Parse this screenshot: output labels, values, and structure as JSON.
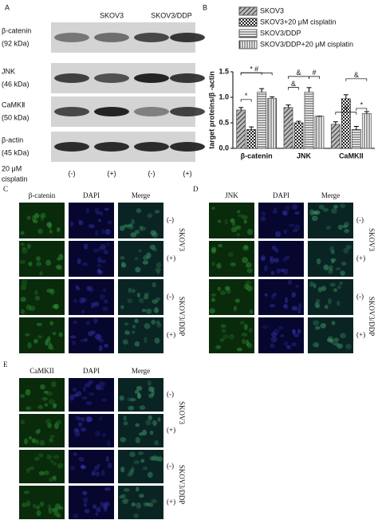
{
  "panel_a": {
    "letter": "A",
    "groups": [
      "SKOV3",
      "SKOV3/DDP"
    ],
    "proteins": [
      {
        "name": "β-catenin",
        "size": "(92 kDa)"
      },
      {
        "name": "JNK",
        "size": "(46 kDa)"
      },
      {
        "name": "CaMKⅡ",
        "size": "(50 kDa)"
      },
      {
        "name": "β-actin",
        "size": "(45 kDa)"
      }
    ],
    "treatment_lines": [
      "20 μM",
      "cisplatin"
    ],
    "conditions": [
      "(-)",
      "(+)",
      "(-)",
      "(+)"
    ]
  },
  "chart_data": {
    "type": "bar",
    "letter": "B",
    "ylabel": "target proteins/β -actin",
    "categories": [
      "β-catenin",
      "JNK",
      "CaMKII"
    ],
    "series": [
      {
        "name": "SKOV3",
        "color": "#555555",
        "hatch": "diagonal",
        "values": [
          0.75,
          0.8,
          0.47
        ],
        "errors": [
          0.05,
          0.05,
          0.05
        ]
      },
      {
        "name": "SKOV3+20 μM cisplatin",
        "color": "#333333",
        "hatch": "checker",
        "values": [
          0.37,
          0.5,
          0.97
        ],
        "errors": [
          0.05,
          0.03,
          0.08
        ]
      },
      {
        "name": "SKOV3/DDP",
        "color": "#555555",
        "hatch": "horizontal",
        "values": [
          1.1,
          1.1,
          0.37
        ],
        "errors": [
          0.07,
          0.09,
          0.06
        ]
      },
      {
        "name": "SKOV3/DDP+20 μM cisplatin",
        "color": "#555555",
        "hatch": "vertical",
        "values": [
          0.98,
          0.63,
          0.68
        ],
        "errors": [
          0.03,
          0,
          0.04
        ]
      }
    ],
    "ylim": [
      0,
      1.5
    ],
    "yticks": [
      {
        "value": 0,
        "label": "0.0"
      },
      {
        "value": 0.5,
        "label": "0.5"
      },
      {
        "value": 1,
        "label": "1.0"
      },
      {
        "value": 1.5,
        "label": "1.5"
      }
    ],
    "annotations": [
      "*",
      "*",
      "#",
      "&",
      "&",
      "#",
      "#",
      "&",
      "*"
    ]
  },
  "panel_c": {
    "letter": "C",
    "columns": [
      "β-catenin",
      "DAPI",
      "Merge"
    ],
    "rows": [
      "(-)",
      "(+)",
      "(-)",
      "(+)"
    ],
    "groups": [
      "SKOV3",
      "SKOV3/DDP"
    ]
  },
  "panel_d": {
    "letter": "D",
    "columns": [
      "JNK",
      "DAPI",
      "Merge"
    ],
    "rows": [
      "(-)",
      "(+)",
      "(-)",
      "(+)"
    ],
    "groups": [
      "SKOV3",
      "SKOV3/DDP"
    ]
  },
  "panel_e": {
    "letter": "E",
    "columns": [
      "CaMKII",
      "DAPI",
      "Merge"
    ],
    "rows": [
      "(-)",
      "(+)",
      "(-)",
      "(+)"
    ],
    "groups": [
      "SKOV3",
      "SKOV3/DDP"
    ]
  }
}
